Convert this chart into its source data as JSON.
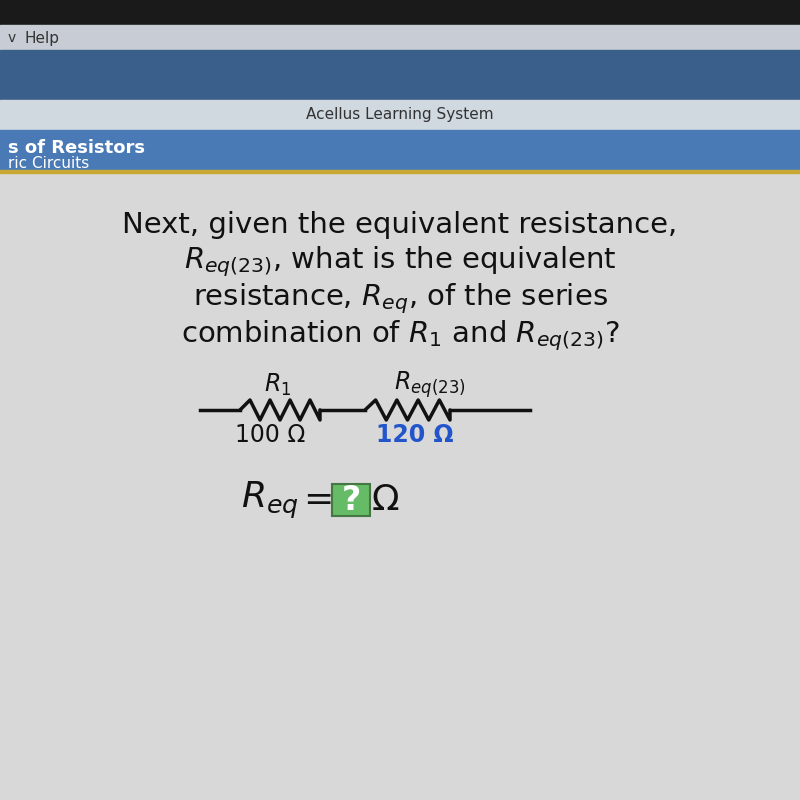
{
  "bg_top_bar": "#1a1a1a",
  "bg_blue_bar": "#3a5f8a",
  "bg_acellus_bar": "#d0d8e0",
  "bg_subheader_bar": "#4a7ab5",
  "bg_main": "#d8d8d8",
  "acellus_text": "Acellus Learning System",
  "acellus_text_color": "#333333",
  "header_line1": "s of Resistors",
  "header_line2": "ric Circuits",
  "header_text_color": "#ffffff",
  "help_text": "Help",
  "question_text_color": "#111111",
  "r1_value": "100 Ω",
  "req23_value": "120 Ω",
  "req23_value_color": "#2255cc",
  "r1_value_color": "#111111",
  "wire_color": "#111111",
  "answer_box_text": "?",
  "answer_box_bg": "#66bb66",
  "answer_box_border": "#447744",
  "answer_omega": "Ω",
  "answer_text_color": "#111111",
  "font_size_question": 21,
  "font_size_circuit_label": 17,
  "font_size_circuit_value": 17,
  "font_size_answer": 26
}
